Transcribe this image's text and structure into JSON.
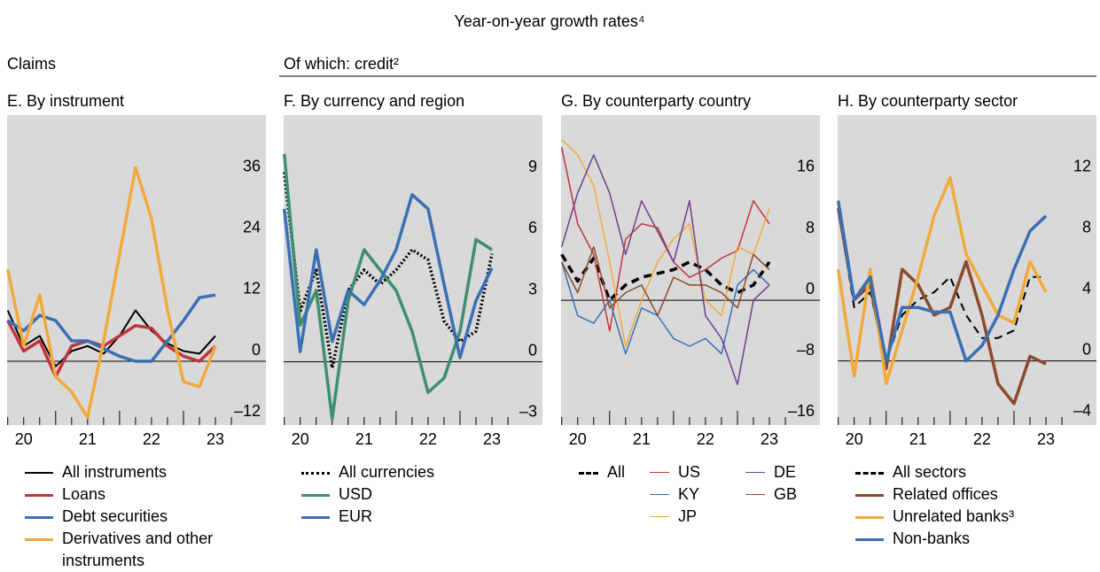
{
  "header": {
    "title": "Year-on-year growth rates⁴",
    "left_label": "Claims",
    "right_label": "Of which: credit²"
  },
  "chart_data": [
    {
      "type": "line",
      "title": "E. By instrument",
      "x": [
        2020.25,
        2020.5,
        2020.75,
        2021.0,
        2021.25,
        2021.5,
        2021.75,
        2022.0,
        2022.25,
        2022.5,
        2022.75,
        2023.0,
        2023.25,
        2023.5
      ],
      "xlim": [
        2020.24,
        2024.29
      ],
      "xticks": [
        {
          "value": 2020.5,
          "label": "20"
        },
        {
          "value": 2021.5,
          "label": "21"
        },
        {
          "value": 2022.5,
          "label": "22"
        },
        {
          "value": 2023.5,
          "label": "23"
        }
      ],
      "xminorticks": [
        2020.25,
        2020.5,
        2020.75,
        2021.0,
        2021.25,
        2021.5,
        2021.75,
        2022.0,
        2022.25,
        2022.5,
        2022.75,
        2023.0,
        2023.25,
        2023.5,
        2023.75
      ],
      "ylim": [
        -12.5,
        48.3
      ],
      "yticks": [
        {
          "value": -12,
          "label": "–12"
        },
        0,
        12,
        24,
        36
      ],
      "zero_line": true,
      "series": [
        {
          "name": "All instruments",
          "color": "#000000",
          "width": 2,
          "dash": "solid",
          "values": [
            10,
            3,
            5,
            -1,
            2,
            3,
            1.5,
            5,
            10,
            6,
            3.5,
            2,
            1.5,
            5
          ]
        },
        {
          "name": "Loans",
          "color": "#c0353a",
          "width": 3.5,
          "dash": "solid",
          "values": [
            8,
            2,
            4,
            -3,
            3,
            4,
            3,
            5,
            7,
            6.5,
            3,
            1,
            0,
            3
          ]
        },
        {
          "name": "Debt securities",
          "color": "#3a6fb5",
          "width": 3.5,
          "dash": "solid",
          "values": [
            8,
            6,
            9,
            8,
            4,
            4,
            2.5,
            1,
            0,
            0,
            4,
            8,
            12.5,
            13
          ]
        },
        {
          "name": "Derivatives and other instruments",
          "color": "#f2a93b",
          "width": 3.5,
          "dash": "solid",
          "values": [
            18,
            3,
            13,
            -3,
            -6,
            -11,
            4,
            21,
            38,
            28,
            10,
            -4,
            -5,
            3
          ]
        }
      ]
    },
    {
      "type": "line",
      "title": "F. By currency and region",
      "x": [
        2020.25,
        2020.5,
        2020.75,
        2021.0,
        2021.25,
        2021.5,
        2021.75,
        2022.0,
        2022.25,
        2022.5,
        2022.75,
        2023.0,
        2023.25,
        2023.5
      ],
      "xlim": [
        2020.24,
        2024.29
      ],
      "xticks": [
        {
          "value": 2020.5,
          "label": "20"
        },
        {
          "value": 2021.5,
          "label": "21"
        },
        {
          "value": 2022.5,
          "label": "22"
        },
        {
          "value": 2023.5,
          "label": "23"
        }
      ],
      "xminorticks": [
        2020.25,
        2020.5,
        2020.75,
        2021.0,
        2021.25,
        2021.5,
        2021.75,
        2022.0,
        2022.25,
        2022.5,
        2022.75,
        2023.0,
        2023.25,
        2023.5,
        2023.75
      ],
      "ylim": [
        -3.1,
        12.1
      ],
      "yticks": [
        {
          "value": -3,
          "label": "–3"
        },
        0,
        3,
        6,
        9
      ],
      "zero_line": true,
      "series": [
        {
          "name": "All currencies",
          "color": "#000000",
          "width": 3.5,
          "dash": "dotted",
          "values": [
            9.3,
            2.5,
            4.5,
            -0.3,
            3.5,
            4.5,
            3.8,
            4.5,
            5.5,
            5,
            2,
            1,
            1.5,
            5.3
          ]
        },
        {
          "name": "USD",
          "color": "#3f8f6f",
          "width": 3.5,
          "dash": "solid",
          "values": [
            10.2,
            1.8,
            3.5,
            -2.8,
            3,
            5.5,
            4.5,
            3.5,
            1.5,
            -1.5,
            -0.8,
            1.5,
            6,
            5.5
          ]
        },
        {
          "name": "EUR",
          "color": "#3a6fb5",
          "width": 3.5,
          "dash": "solid",
          "values": [
            7.5,
            0.5,
            5.5,
            1,
            3.5,
            2.8,
            4,
            5.5,
            8.2,
            7.5,
            3.8,
            0.2,
            3,
            4.6
          ]
        }
      ]
    },
    {
      "type": "line",
      "title": "G. By counterparty country",
      "x": [
        2020.25,
        2020.5,
        2020.75,
        2021.0,
        2021.25,
        2021.5,
        2021.75,
        2022.0,
        2022.25,
        2022.5,
        2022.75,
        2023.0,
        2023.25,
        2023.5
      ],
      "xlim": [
        2020.24,
        2024.29
      ],
      "xticks": [
        {
          "value": 2020.5,
          "label": "20"
        },
        {
          "value": 2021.5,
          "label": "21"
        },
        {
          "value": 2022.5,
          "label": "22"
        },
        {
          "value": 2023.5,
          "label": "23"
        }
      ],
      "xminorticks": [
        2020.25,
        2020.5,
        2020.75,
        2021.0,
        2021.25,
        2021.5,
        2021.75,
        2022.0,
        2022.25,
        2022.5,
        2022.75,
        2023.0,
        2023.25,
        2023.5,
        2023.75
      ],
      "ylim": [
        -16.3,
        24.2
      ],
      "yticks": [
        {
          "value": -16,
          "label": "–16"
        },
        {
          "value": -8,
          "label": "–8"
        },
        0,
        8,
        16
      ],
      "zero_line": true,
      "series": [
        {
          "name": "All",
          "color": "#000000",
          "width": 3.5,
          "dash": "dashed",
          "values": [
            6,
            2.5,
            5.5,
            0,
            2,
            3,
            3.5,
            4,
            5,
            4,
            2,
            1,
            2,
            5
          ]
        },
        {
          "name": "US",
          "color": "#c0353a",
          "width": 1.5,
          "dash": "solid",
          "values": [
            20,
            10,
            6,
            -4,
            8,
            10,
            9.5,
            5,
            3,
            4,
            5.5,
            6.5,
            13,
            10
          ]
        },
        {
          "name": "KY",
          "color": "#3a6fb5",
          "width": 1.5,
          "dash": "solid",
          "values": [
            5,
            -2,
            -3,
            0,
            -7,
            -1,
            -2,
            -5,
            -6,
            -5,
            -7,
            2,
            4,
            2
          ]
        },
        {
          "name": "JP",
          "color": "#f2a93b",
          "width": 1.5,
          "dash": "solid",
          "values": [
            21,
            19,
            15,
            5,
            -6,
            0,
            5,
            8,
            10,
            0,
            -2,
            7,
            6,
            12
          ]
        },
        {
          "name": "DE",
          "color": "#6b3f8f",
          "width": 1.5,
          "dash": "solid",
          "values": [
            7,
            14,
            19,
            14,
            6,
            13,
            9,
            5,
            13,
            -2,
            -5,
            -11,
            0,
            2
          ]
        },
        {
          "name": "GB",
          "color": "#8b4a2b",
          "width": 1.5,
          "dash": "solid",
          "values": [
            5,
            1,
            7,
            -1,
            1,
            2,
            -2,
            3,
            2,
            2,
            1,
            -1,
            6,
            4
          ]
        }
      ]
    },
    {
      "type": "line",
      "title": "H. By counterparty sector",
      "x": [
        2020.25,
        2020.5,
        2020.75,
        2021.0,
        2021.25,
        2021.5,
        2021.75,
        2022.0,
        2022.25,
        2022.5,
        2022.75,
        2023.0,
        2023.25,
        2023.5
      ],
      "xlim": [
        2020.24,
        2024.29
      ],
      "xticks": [
        {
          "value": 2020.5,
          "label": "20"
        },
        {
          "value": 2021.5,
          "label": "21"
        },
        {
          "value": 2022.5,
          "label": "22"
        },
        {
          "value": 2023.5,
          "label": "23"
        }
      ],
      "xminorticks": [
        2020.25,
        2020.5,
        2020.75,
        2021.0,
        2021.25,
        2021.5,
        2021.75,
        2022.0,
        2022.25,
        2022.5,
        2022.75,
        2023.0,
        2023.25,
        2023.5,
        2023.75
      ],
      "ylim": [
        -4.2,
        16.1
      ],
      "yticks": [
        {
          "value": -4,
          "label": "–4"
        },
        0,
        4,
        8,
        12
      ],
      "zero_line": true,
      "series": [
        {
          "name": "All sectors",
          "color": "#000000",
          "width": 2,
          "dash": "dashed",
          "values": [
            10,
            3.5,
            4.5,
            0,
            3,
            4,
            4.5,
            5.5,
            3,
            1.5,
            1.5,
            2,
            5.5,
            5.5
          ]
        },
        {
          "name": "Related offices",
          "color": "#8b4a2b",
          "width": 3.5,
          "dash": "solid",
          "values": [
            10,
            4,
            5,
            -0.5,
            6,
            5,
            3,
            3.5,
            6.5,
            3,
            -1.5,
            -2.8,
            0.3,
            -0.2
          ]
        },
        {
          "name": "Unrelated banks³",
          "color": "#f2a93b",
          "width": 3.5,
          "dash": "solid",
          "values": [
            6,
            -1,
            6,
            -1.5,
            2,
            5.5,
            9.5,
            12,
            7,
            5,
            3,
            2.5,
            6.5,
            4.5
          ]
        },
        {
          "name": "Non-banks",
          "color": "#3a6fb5",
          "width": 3.5,
          "dash": "solid",
          "values": [
            10.5,
            4,
            5.5,
            0,
            3.5,
            3.5,
            3.2,
            3.2,
            0,
            1,
            3,
            6,
            8.5,
            9.5
          ]
        }
      ]
    }
  ]
}
